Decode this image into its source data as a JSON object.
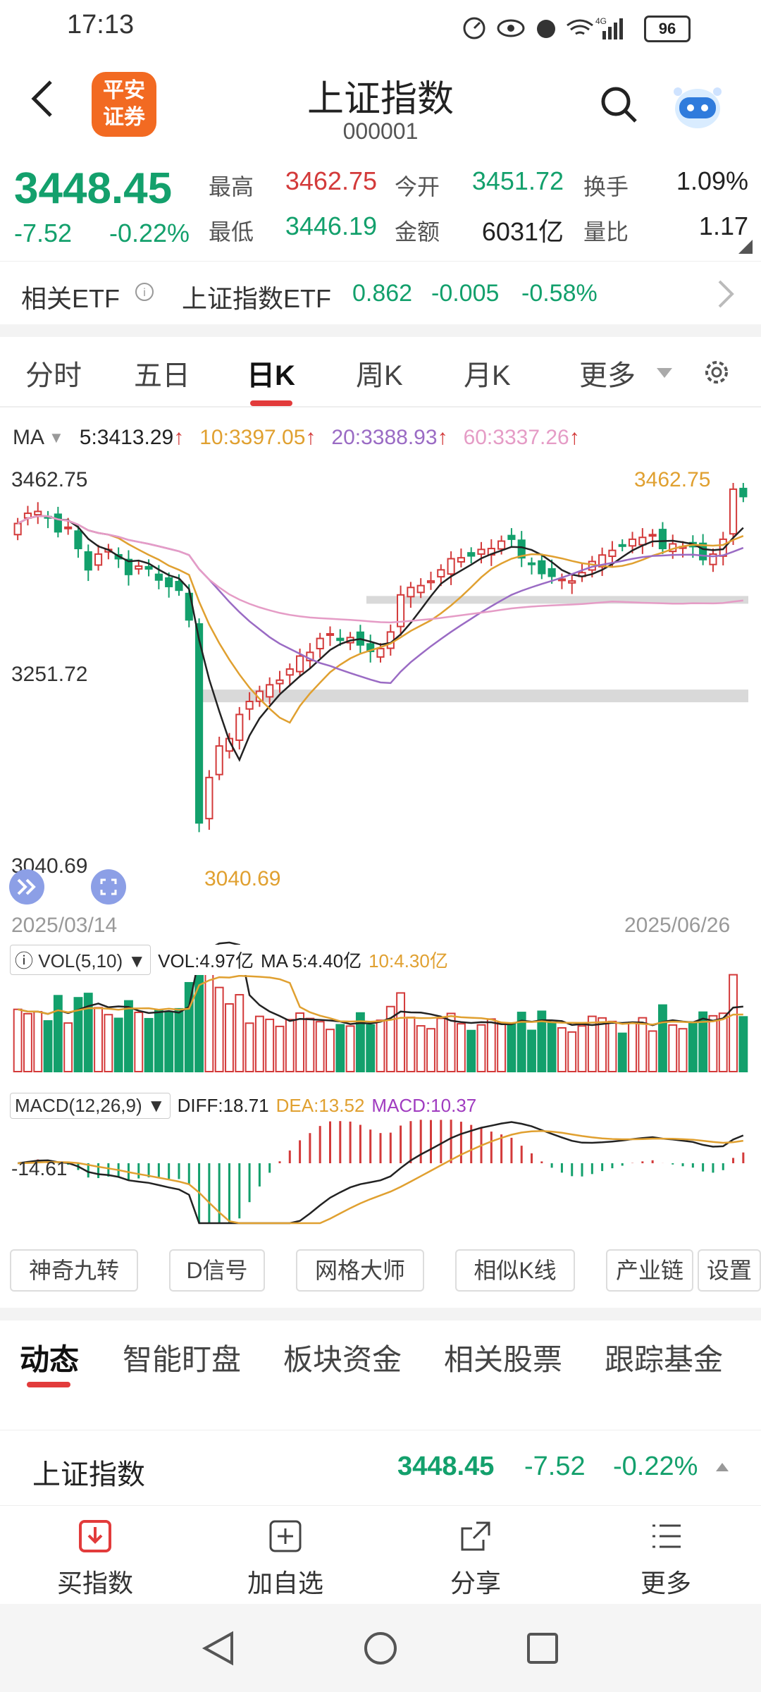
{
  "status_bar": {
    "time": "17:13",
    "battery": "96",
    "network": "4G"
  },
  "header": {
    "logo_text_1": "平安",
    "logo_text_2": "证券",
    "title": "上证指数",
    "code": "000001",
    "back_icon": "chevron-left-icon",
    "search_icon": "search-icon",
    "assistant_icon": "robot-icon"
  },
  "quote": {
    "price": "3448.45",
    "change": "-7.52",
    "change_pct": "-0.22%",
    "high_label": "最高",
    "high": "3462.75",
    "low_label": "最低",
    "low": "3446.19",
    "open_label": "今开",
    "open": "3451.72",
    "amount_label": "金额",
    "amount": "6031亿",
    "turnover_label": "换手",
    "turnover": "1.09%",
    "volume_ratio_label": "量比",
    "volume_ratio": "1.17"
  },
  "etf": {
    "label": "相关ETF",
    "name": "上证指数ETF",
    "price": "0.862",
    "change": "-0.005",
    "change_pct": "-0.58%"
  },
  "chart_tabs": [
    "分时",
    "五日",
    "日K",
    "周K",
    "月K",
    "更多"
  ],
  "ma": {
    "label": "MA",
    "ma5": "5:3413.29",
    "ma10": "10:3397.05",
    "ma20": "20:3388.93",
    "ma60": "60:3337.26"
  },
  "colors": {
    "up": "#d33a3a",
    "down": "#13a06c",
    "ma5": "#222222",
    "ma10": "#e0a030",
    "ma20": "#9a6bc4",
    "ma60": "#e59cc6",
    "accent": "#e23b3b"
  },
  "chart_data": {
    "type": "candlestick",
    "y_labels": [
      "3462.75",
      "3251.72",
      "3040.69"
    ],
    "ylim": [
      3040.69,
      3462.75
    ],
    "high_annotation": "3462.75",
    "low_annotation": "3040.69",
    "start_date": "2025/03/14",
    "end_date": "2025/06/26",
    "closes": [
      3419,
      3430,
      3432,
      3426,
      3410,
      3415,
      3392,
      3369,
      3386,
      3391,
      3381,
      3364,
      3373,
      3370,
      3358,
      3351,
      3347,
      3315,
      3096,
      3145,
      3179,
      3187,
      3213,
      3227,
      3238,
      3245,
      3250,
      3262,
      3276,
      3280,
      3295,
      3300,
      3293,
      3296,
      3288,
      3281,
      3284,
      3302,
      3342,
      3350,
      3352,
      3357,
      3369,
      3381,
      3382,
      3384,
      3391,
      3392,
      3400,
      3402,
      3382,
      3376,
      3365,
      3362,
      3359,
      3357,
      3366,
      3378,
      3385,
      3390,
      3395,
      3402,
      3404,
      3407,
      3392,
      3397,
      3394,
      3394,
      3380,
      3386,
      3402,
      3456,
      3448
    ]
  },
  "volume": {
    "label": "VOL(5,10)",
    "vol": "VOL:4.97亿",
    "ma5": "MA 5:4.40亿",
    "ma10": "10:4.30亿"
  },
  "macd": {
    "label": "MACD(12,26,9)",
    "diff": "DIFF:18.71",
    "dea": "DEA:13.52",
    "macd": "MACD:10.37",
    "axis_label": "-14.61"
  },
  "tools": [
    "神奇九转",
    "D信号",
    "网格大师",
    "相似K线",
    "产业链",
    "设置"
  ],
  "bottom_tabs": [
    "动态",
    "智能盯盘",
    "板块资金",
    "相关股票",
    "跟踪基金"
  ],
  "index_row": {
    "name": "上证指数",
    "price": "3448.45",
    "change": "-7.52",
    "change_pct": "-0.22%"
  },
  "actions": [
    {
      "label": "买指数",
      "icon": "download-icon"
    },
    {
      "label": "加自选",
      "icon": "add-square-icon"
    },
    {
      "label": "分享",
      "icon": "share-icon"
    },
    {
      "label": "更多",
      "icon": "menu-list-icon"
    }
  ]
}
